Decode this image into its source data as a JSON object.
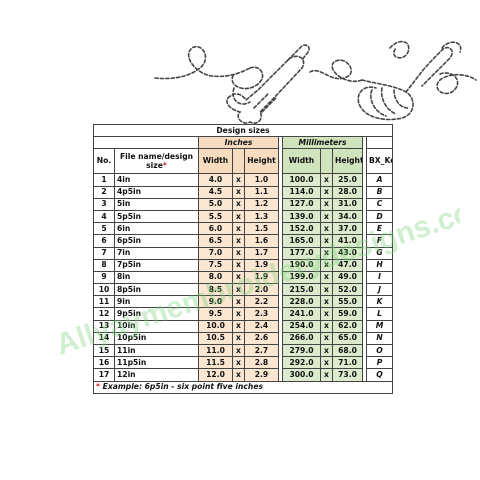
{
  "table": {
    "title": "Design sizes",
    "group_inches": "Inches",
    "group_mm": "Millimeters",
    "col_no": "No.",
    "col_name": "File name/design size",
    "col_name_mark": "*",
    "col_width": "Width",
    "col_height": "Height",
    "col_key": "BX_Key",
    "times": "x",
    "rows": [
      {
        "no": "1",
        "name": "4in",
        "w_in": "4.0",
        "h_in": "1.0",
        "w_mm": "100.0",
        "h_mm": "25.0",
        "key": "A"
      },
      {
        "no": "2",
        "name": "4p5in",
        "w_in": "4.5",
        "h_in": "1.1",
        "w_mm": "114.0",
        "h_mm": "28.0",
        "key": "B"
      },
      {
        "no": "3",
        "name": "5in",
        "w_in": "5.0",
        "h_in": "1.2",
        "w_mm": "127.0",
        "h_mm": "31.0",
        "key": "C"
      },
      {
        "no": "4",
        "name": "5p5in",
        "w_in": "5.5",
        "h_in": "1.3",
        "w_mm": "139.0",
        "h_mm": "34.0",
        "key": "D"
      },
      {
        "no": "5",
        "name": "6in",
        "w_in": "6.0",
        "h_in": "1.5",
        "w_mm": "152.0",
        "h_mm": "37.0",
        "key": "E"
      },
      {
        "no": "6",
        "name": "6p5in",
        "w_in": "6.5",
        "h_in": "1.6",
        "w_mm": "165.0",
        "h_mm": "41.0",
        "key": "F"
      },
      {
        "no": "7",
        "name": "7in",
        "w_in": "7.0",
        "h_in": "1.7",
        "w_mm": "177.0",
        "h_mm": "43.0",
        "key": "G"
      },
      {
        "no": "8",
        "name": "7p5in",
        "w_in": "7.5",
        "h_in": "1.9",
        "w_mm": "190.0",
        "h_mm": "47.0",
        "key": "H"
      },
      {
        "no": "9",
        "name": "8in",
        "w_in": "8.0",
        "h_in": "1.9",
        "w_mm": "199.0",
        "h_mm": "49.0",
        "key": "I"
      },
      {
        "no": "10",
        "name": "8p5in",
        "w_in": "8.5",
        "h_in": "2.0",
        "w_mm": "215.0",
        "h_mm": "52.0",
        "key": "J"
      },
      {
        "no": "11",
        "name": "9in",
        "w_in": "9.0",
        "h_in": "2.2",
        "w_mm": "228.0",
        "h_mm": "55.0",
        "key": "K"
      },
      {
        "no": "12",
        "name": "9p5in",
        "w_in": "9.5",
        "h_in": "2.3",
        "w_mm": "241.0",
        "h_mm": "59.0",
        "key": "L"
      },
      {
        "no": "13",
        "name": "10in",
        "w_in": "10.0",
        "h_in": "2.4",
        "w_mm": "254.0",
        "h_mm": "62.0",
        "key": "M"
      },
      {
        "no": "14",
        "name": "10p5in",
        "w_in": "10.5",
        "h_in": "2.6",
        "w_mm": "266.0",
        "h_mm": "65.0",
        "key": "N"
      },
      {
        "no": "15",
        "name": "11in",
        "w_in": "11.0",
        "h_in": "2.7",
        "w_mm": "279.0",
        "h_mm": "68.0",
        "key": "O"
      },
      {
        "no": "16",
        "name": "11p5in",
        "w_in": "11.5",
        "h_in": "2.8",
        "w_mm": "292.0",
        "h_mm": "71.0",
        "key": "P"
      },
      {
        "no": "17",
        "name": "12in",
        "w_in": "12.0",
        "h_in": "2.9",
        "w_mm": "300.0",
        "h_mm": "73.0",
        "key": "Q"
      }
    ],
    "note_mark": "*",
    "note": "Example: 6p5in - six point five inches"
  },
  "watermark": {
    "text": "Allyaymembroiderydesigns.com"
  },
  "colors": {
    "inches_header": "#f8dcc0",
    "inches_cell": "#fbe6d2",
    "mm_header": "#cfe3bd",
    "mm_cell": "#dcebcd",
    "note_mark": "#d21f1f"
  }
}
